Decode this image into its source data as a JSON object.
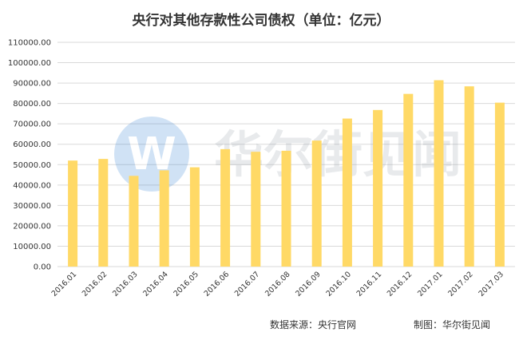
{
  "chart_data": {
    "type": "bar",
    "title": "央行对其他存款性公司债权（单位：亿元）",
    "categories": [
      "2016.01",
      "2016.02",
      "2016.03",
      "2016.04",
      "2016.05",
      "2016.06",
      "2016.07",
      "2016.08",
      "2016.09",
      "2016.10",
      "2016.11",
      "2016.12",
      "2017.01",
      "2017.02",
      "2017.03"
    ],
    "values": [
      52000,
      52800,
      44500,
      47200,
      48700,
      57600,
      56300,
      56800,
      61800,
      72600,
      76800,
      84700,
      91400,
      88400,
      80400
    ],
    "ylim": [
      0,
      110000
    ],
    "ytick_step": 10000,
    "yticks_labels": [
      "0.00",
      "10000.00",
      "20000.00",
      "30000.00",
      "40000.00",
      "50000.00",
      "60000.00",
      "70000.00",
      "80000.00",
      "90000.00",
      "100000.00",
      "110000.00"
    ],
    "xlabel": "",
    "ylabel": "",
    "grid": true,
    "bar_color": "#FFD966"
  },
  "watermark": {
    "logo_letter": "W",
    "text": "华尔街见闻"
  },
  "footer": {
    "source": "数据来源：央行官网",
    "made_by": "制图：华尔街见闻"
  }
}
